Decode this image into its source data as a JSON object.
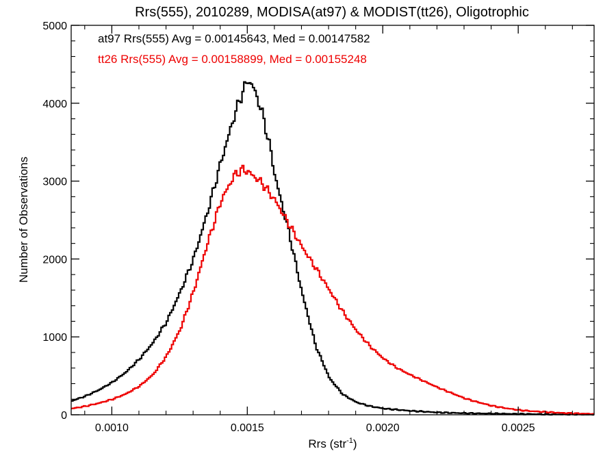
{
  "chart_data": {
    "type": "line",
    "title": "Rrs(555), 2010289, MODISA(at97) & MODIST(tt26), Oligotrophic",
    "xlabel_main": "Rrs (str",
    "xlabel_sup": "-1",
    "xlabel_close": ")",
    "ylabel": "Number of Observations",
    "xlim": [
      0.00085,
      0.00278
    ],
    "ylim": [
      0,
      5000
    ],
    "x_ticks": [
      0.001,
      0.0015,
      0.002,
      0.0025
    ],
    "x_tick_labels": [
      "0.0010",
      "0.0015",
      "0.0020",
      "0.0025"
    ],
    "y_ticks": [
      0,
      1000,
      2000,
      3000,
      4000,
      5000
    ],
    "y_tick_labels": [
      "0",
      "1000",
      "2000",
      "3000",
      "4000",
      "5000"
    ],
    "grid": false,
    "annotations": [
      {
        "text": "at97 Rrs(555) Avg = 0.00145643, Med = 0.00147582",
        "color": "#000000"
      },
      {
        "text": "tt26 Rrs(555) Avg = 0.00158899, Med = 0.00155248",
        "color": "#ee0000"
      }
    ],
    "series": [
      {
        "color": "#000000",
        "style": "step",
        "points": [
          [
            0.00085,
            180
          ],
          [
            0.0009,
            240
          ],
          [
            0.00095,
            320
          ],
          [
            0.001,
            420
          ],
          [
            0.00105,
            550
          ],
          [
            0.0011,
            720
          ],
          [
            0.00115,
            930
          ],
          [
            0.0012,
            1200
          ],
          [
            0.00125,
            1580
          ],
          [
            0.0013,
            2020
          ],
          [
            0.00135,
            2600
          ],
          [
            0.0014,
            3250
          ],
          [
            0.00145,
            3850
          ],
          [
            0.00148,
            4150
          ],
          [
            0.0015,
            4300
          ],
          [
            0.00152,
            4200
          ],
          [
            0.00155,
            3900
          ],
          [
            0.00158,
            3450
          ],
          [
            0.0016,
            3050
          ],
          [
            0.00165,
            2350
          ],
          [
            0.0017,
            1550
          ],
          [
            0.00175,
            880
          ],
          [
            0.0018,
            470
          ],
          [
            0.00185,
            260
          ],
          [
            0.0019,
            160
          ],
          [
            0.00195,
            110
          ],
          [
            0.002,
            80
          ],
          [
            0.0021,
            50
          ],
          [
            0.0022,
            30
          ],
          [
            0.0023,
            20
          ],
          [
            0.0024,
            15
          ],
          [
            0.0025,
            10
          ],
          [
            0.0026,
            6
          ],
          [
            0.0027,
            4
          ],
          [
            0.00278,
            2
          ]
        ]
      },
      {
        "color": "#ee0000",
        "style": "step",
        "points": [
          [
            0.00085,
            80
          ],
          [
            0.0009,
            110
          ],
          [
            0.00095,
            150
          ],
          [
            0.001,
            200
          ],
          [
            0.00105,
            270
          ],
          [
            0.0011,
            370
          ],
          [
            0.00115,
            520
          ],
          [
            0.0012,
            760
          ],
          [
            0.00125,
            1100
          ],
          [
            0.0013,
            1600
          ],
          [
            0.00135,
            2200
          ],
          [
            0.0014,
            2750
          ],
          [
            0.00145,
            3080
          ],
          [
            0.00148,
            3150
          ],
          [
            0.0015,
            3120
          ],
          [
            0.00155,
            2980
          ],
          [
            0.0016,
            2750
          ],
          [
            0.00165,
            2450
          ],
          [
            0.0017,
            2150
          ],
          [
            0.00175,
            1880
          ],
          [
            0.0018,
            1600
          ],
          [
            0.00185,
            1320
          ],
          [
            0.0019,
            1080
          ],
          [
            0.00195,
            880
          ],
          [
            0.002,
            720
          ],
          [
            0.00205,
            600
          ],
          [
            0.0021,
            510
          ],
          [
            0.00215,
            430
          ],
          [
            0.0022,
            350
          ],
          [
            0.00225,
            280
          ],
          [
            0.0023,
            210
          ],
          [
            0.00235,
            160
          ],
          [
            0.0024,
            115
          ],
          [
            0.00245,
            85
          ],
          [
            0.0025,
            60
          ],
          [
            0.00255,
            45
          ],
          [
            0.0026,
            35
          ],
          [
            0.00265,
            25
          ],
          [
            0.0027,
            18
          ],
          [
            0.00278,
            10
          ]
        ]
      }
    ]
  }
}
